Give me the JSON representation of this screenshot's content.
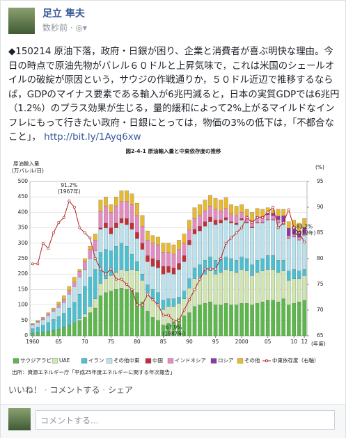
{
  "post": {
    "author": "足立 隼夫",
    "time": "数秒前",
    "text": "◆150214 原油下落，政府・日銀が困り、企業と消費者が喜ぶ明快な理由。今日の時点で原油先物がバレル６０ドルと上昇気味で，これは米国のシェールオイルの破綻が原因という，サウジの作戦通りか，５０ドル近辺で推移するならば，GDPのマイナス要素である輸入が6兆円減ると，日本の実質GDPでは6兆円（1.2%）のプラス効果が生じる，量的緩和によって2%上がるマイルドなインフレにもって行きたい政府・日銀にとっては，物価の3%の低下は，「不都合なこと」，",
    "link": "http://bit.ly/1Ayq6xw"
  },
  "chart_data": {
    "type": "stacked_bar_line",
    "title": "図2-4-1 原油輸入量と中東依存度の推移",
    "y_label": "原油輸入量",
    "y_unit": "(万バレル/日)",
    "y2_label": "(%)",
    "x_label": "(年度)",
    "source": "出所：資源エネルギー庁「平成25年度エネルギーに関する年次報告」",
    "categories": [
      "1960",
      null,
      null,
      null,
      null,
      "65",
      null,
      null,
      null,
      null,
      "70",
      null,
      null,
      null,
      null,
      "75",
      null,
      null,
      null,
      null,
      "80",
      null,
      null,
      null,
      null,
      "85",
      null,
      null,
      null,
      null,
      "90",
      null,
      null,
      null,
      null,
      "95",
      null,
      null,
      null,
      null,
      "2000",
      null,
      null,
      null,
      null,
      "05",
      null,
      null,
      null,
      null,
      "10",
      null,
      "12"
    ],
    "ylim": [
      0,
      500
    ],
    "yticks": [
      0,
      50,
      100,
      150,
      200,
      250,
      300,
      350,
      400,
      450,
      500
    ],
    "y2lim": [
      65,
      95
    ],
    "y2ticks": [
      65,
      70,
      75,
      80,
      85,
      90,
      95
    ],
    "series": [
      {
        "name": "サウジアラビア",
        "color": "#5cb84a",
        "values": [
          8,
          10,
          12,
          15,
          18,
          22,
          28,
          35,
          42,
          50,
          60,
          75,
          90,
          130,
          140,
          145,
          150,
          155,
          150,
          150,
          140,
          110,
          80,
          60,
          50,
          35,
          40,
          45,
          55,
          65,
          75,
          95,
          100,
          105,
          110,
          100,
          100,
          105,
          100,
          100,
          105,
          105,
          100,
          105,
          110,
          115,
          115,
          110,
          120,
          100,
          105,
          110,
          115
        ]
      },
      {
        "name": "UAE",
        "color": "#cfe6b0",
        "values": [
          0,
          0,
          0,
          0,
          0,
          0,
          0,
          0,
          2,
          5,
          10,
          20,
          30,
          40,
          45,
          50,
          55,
          60,
          60,
          65,
          70,
          70,
          60,
          60,
          55,
          50,
          55,
          50,
          50,
          55,
          80,
          90,
          90,
          95,
          100,
          100,
          105,
          110,
          110,
          105,
          110,
          105,
          95,
          100,
          100,
          100,
          100,
          95,
          90,
          80,
          80,
          75,
          80
        ]
      },
      {
        "name": "イラン",
        "color": "#4cc0d0",
        "values": [
          15,
          18,
          22,
          28,
          35,
          40,
          45,
          55,
          65,
          80,
          90,
          95,
          95,
          100,
          95,
          80,
          85,
          85,
          80,
          50,
          30,
          20,
          25,
          30,
          35,
          30,
          25,
          25,
          20,
          25,
          30,
          35,
          40,
          45,
          45,
          45,
          45,
          40,
          40,
          40,
          40,
          40,
          35,
          40,
          40,
          45,
          45,
          40,
          35,
          30,
          30,
          25,
          20
        ]
      },
      {
        "name": "その他中東",
        "color": "#b9e2ee",
        "values": [
          12,
          15,
          18,
          22,
          25,
          30,
          35,
          45,
          50,
          55,
          55,
          60,
          60,
          75,
          70,
          55,
          60,
          65,
          70,
          80,
          75,
          80,
          75,
          75,
          80,
          85,
          85,
          80,
          90,
          95,
          110,
          110,
          110,
          110,
          115,
          115,
          115,
          120,
          115,
          115,
          120,
          115,
          120,
          120,
          115,
          115,
          115,
          120,
          115,
          105,
          105,
          100,
          110
        ]
      },
      {
        "name": "中国",
        "color": "#c0303a",
        "values": [
          0,
          0,
          0,
          0,
          0,
          0,
          0,
          0,
          0,
          0,
          0,
          0,
          0,
          5,
          15,
          20,
          15,
          15,
          20,
          20,
          20,
          20,
          20,
          25,
          25,
          25,
          20,
          20,
          20,
          20,
          15,
          15,
          15,
          15,
          15,
          15,
          10,
          8,
          5,
          5,
          5,
          3,
          3,
          2,
          2,
          2,
          2,
          1,
          1,
          1,
          1,
          1,
          0
        ]
      },
      {
        "name": "インドネシア",
        "color": "#e48cc0",
        "values": [
          3,
          4,
          5,
          5,
          6,
          8,
          10,
          12,
          15,
          18,
          25,
          30,
          35,
          55,
          55,
          50,
          55,
          55,
          55,
          60,
          55,
          55,
          50,
          50,
          50,
          45,
          45,
          45,
          45,
          40,
          35,
          35,
          35,
          35,
          35,
          35,
          30,
          30,
          25,
          25,
          20,
          20,
          20,
          20,
          18,
          15,
          12,
          10,
          8,
          8,
          8,
          8,
          6
        ]
      },
      {
        "name": "ロシア",
        "color": "#8a3aa0",
        "values": [
          0,
          0,
          0,
          0,
          0,
          0,
          0,
          0,
          0,
          0,
          0,
          0,
          0,
          0,
          0,
          0,
          0,
          0,
          0,
          0,
          0,
          0,
          0,
          0,
          0,
          0,
          0,
          0,
          0,
          0,
          0,
          0,
          0,
          0,
          0,
          0,
          0,
          0,
          0,
          0,
          0,
          0,
          0,
          0,
          2,
          5,
          8,
          12,
          20,
          25,
          25,
          20,
          20
        ]
      },
      {
        "name": "その他",
        "color": "#e8b830",
        "values": [
          2,
          3,
          3,
          5,
          6,
          10,
          12,
          13,
          16,
          7,
          10,
          10,
          20,
          35,
          30,
          25,
          30,
          35,
          35,
          35,
          40,
          35,
          30,
          25,
          25,
          30,
          30,
          30,
          30,
          30,
          30,
          35,
          35,
          35,
          35,
          35,
          35,
          35,
          30,
          30,
          25,
          22,
          27,
          26,
          23,
          18,
          11,
          22,
          21,
          21,
          21,
          26,
          29
        ]
      },
      {
        "name": "中東依存度（右軸）",
        "color": "#b02020",
        "axis": "y2",
        "values": [
          79,
          79,
          83,
          82,
          85,
          87,
          88,
          91.2,
          90,
          86,
          85,
          84,
          80,
          78,
          77,
          78,
          76,
          76,
          75,
          74,
          71,
          71,
          73,
          72,
          71,
          69,
          69,
          67.9,
          68,
          70,
          72,
          74,
          76,
          78,
          78,
          78,
          80,
          83,
          84,
          85,
          86,
          88,
          87,
          88,
          88,
          89,
          90,
          86,
          87,
          89.5,
          86,
          85,
          83.2
        ]
      }
    ],
    "annotations": [
      "91.2%",
      "(1967年)",
      "67.9%",
      "(1987年)",
      "83.2%",
      "(2012年)"
    ]
  },
  "actions": [
    "いいね！",
    "コメントする",
    "シェア"
  ],
  "comment_placeholder": "コメントする..."
}
